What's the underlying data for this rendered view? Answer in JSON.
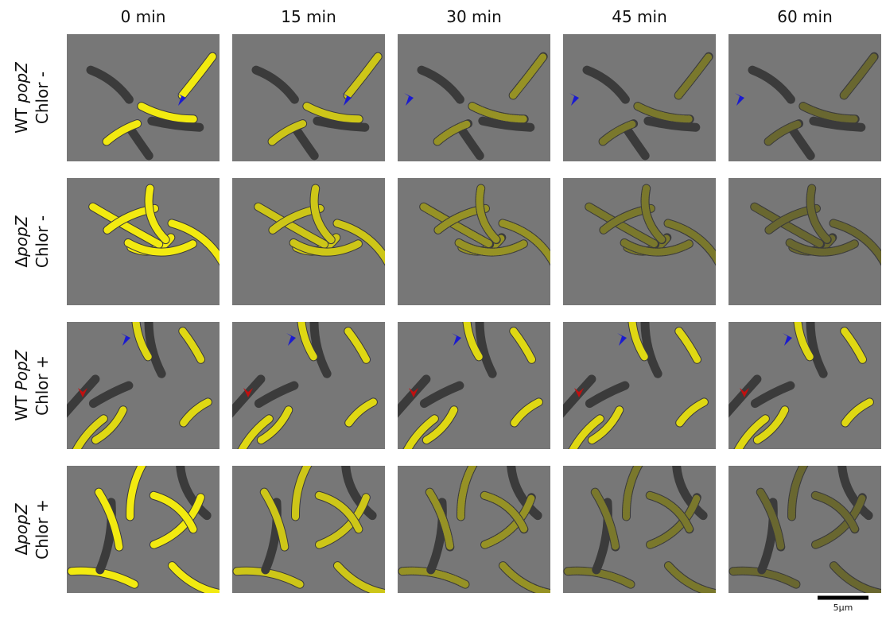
{
  "columns": [
    "0 min",
    "15 min",
    "30 min",
    "45 min",
    "60 min"
  ],
  "rows": [
    {
      "prefix": "WT ",
      "gene": "popZ",
      "condition": "Chlor -"
    },
    {
      "prefix": "Δ",
      "gene": "popZ",
      "condition": "Chlor -"
    },
    {
      "prefix": "WT ",
      "gene": "PopZ",
      "condition": "Chlor +"
    },
    {
      "prefix": "Δ",
      "gene": "popZ",
      "condition": "Chlor +"
    }
  ],
  "scale_bar": "5μm"
}
